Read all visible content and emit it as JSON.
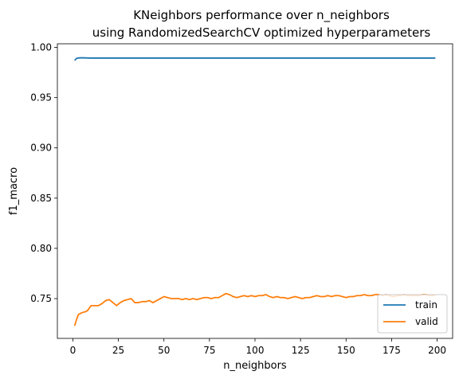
{
  "chart_data": {
    "type": "line",
    "title_line1": "KNeighbors performance over n_neighbors",
    "title_line2": "using RandomizedSearchCV optimized hyperparameters",
    "xlabel": "n_neighbors",
    "ylabel": "f1_macro",
    "xlim": [
      -8.5,
      208.5
    ],
    "ylim": [
      0.7104,
      1.0036
    ],
    "xticks": [
      0,
      25,
      50,
      75,
      100,
      125,
      150,
      175,
      200
    ],
    "xtick_labels": [
      "0",
      "25",
      "50",
      "75",
      "100",
      "125",
      "150",
      "175",
      "200"
    ],
    "yticks": [
      0.75,
      0.8,
      0.85,
      0.9,
      0.95,
      1.0
    ],
    "ytick_labels": [
      "0.75",
      "0.80",
      "0.85",
      "0.90",
      "0.95",
      "1.00"
    ],
    "legend_position": "bottom-right",
    "series": [
      {
        "name": "train",
        "color": "#1f77b4",
        "points": [
          [
            1,
            0.987
          ],
          [
            2,
            0.989
          ],
          [
            3,
            0.9895
          ],
          [
            5,
            0.9897
          ],
          [
            8,
            0.9895
          ],
          [
            10,
            0.9894
          ],
          [
            20,
            0.9894
          ],
          [
            50,
            0.9894
          ],
          [
            100,
            0.9894
          ],
          [
            150,
            0.9894
          ],
          [
            199,
            0.9894
          ]
        ]
      },
      {
        "name": "valid",
        "color": "#ff7f0e",
        "points": [
          [
            1,
            0.723
          ],
          [
            2,
            0.729
          ],
          [
            3,
            0.734
          ],
          [
            5,
            0.736
          ],
          [
            7,
            0.737
          ],
          [
            8,
            0.738
          ],
          [
            10,
            0.743
          ],
          [
            12,
            0.743
          ],
          [
            14,
            0.743
          ],
          [
            16,
            0.745
          ],
          [
            18,
            0.748
          ],
          [
            20,
            0.749
          ],
          [
            22,
            0.746
          ],
          [
            24,
            0.743
          ],
          [
            26,
            0.746
          ],
          [
            28,
            0.748
          ],
          [
            30,
            0.749
          ],
          [
            32,
            0.75
          ],
          [
            34,
            0.746
          ],
          [
            36,
            0.746
          ],
          [
            38,
            0.747
          ],
          [
            40,
            0.747
          ],
          [
            42,
            0.748
          ],
          [
            44,
            0.746
          ],
          [
            46,
            0.748
          ],
          [
            48,
            0.75
          ],
          [
            50,
            0.752
          ],
          [
            52,
            0.751
          ],
          [
            54,
            0.75
          ],
          [
            56,
            0.75
          ],
          [
            58,
            0.75
          ],
          [
            60,
            0.749
          ],
          [
            62,
            0.75
          ],
          [
            64,
            0.749
          ],
          [
            66,
            0.75
          ],
          [
            68,
            0.749
          ],
          [
            70,
            0.75
          ],
          [
            72,
            0.751
          ],
          [
            74,
            0.751
          ],
          [
            76,
            0.75
          ],
          [
            78,
            0.751
          ],
          [
            80,
            0.751
          ],
          [
            82,
            0.753
          ],
          [
            84,
            0.755
          ],
          [
            86,
            0.754
          ],
          [
            88,
            0.752
          ],
          [
            90,
            0.751
          ],
          [
            92,
            0.752
          ],
          [
            94,
            0.753
          ],
          [
            96,
            0.752
          ],
          [
            98,
            0.753
          ],
          [
            100,
            0.752
          ],
          [
            102,
            0.753
          ],
          [
            104,
            0.753
          ],
          [
            106,
            0.754
          ],
          [
            108,
            0.752
          ],
          [
            110,
            0.751
          ],
          [
            112,
            0.752
          ],
          [
            114,
            0.751
          ],
          [
            116,
            0.751
          ],
          [
            118,
            0.75
          ],
          [
            120,
            0.751
          ],
          [
            122,
            0.752
          ],
          [
            124,
            0.751
          ],
          [
            126,
            0.75
          ],
          [
            128,
            0.751
          ],
          [
            130,
            0.751
          ],
          [
            132,
            0.752
          ],
          [
            134,
            0.753
          ],
          [
            136,
            0.752
          ],
          [
            138,
            0.752
          ],
          [
            140,
            0.753
          ],
          [
            142,
            0.752
          ],
          [
            144,
            0.753
          ],
          [
            146,
            0.753
          ],
          [
            148,
            0.752
          ],
          [
            150,
            0.751
          ],
          [
            152,
            0.752
          ],
          [
            154,
            0.752
          ],
          [
            156,
            0.753
          ],
          [
            158,
            0.753
          ],
          [
            160,
            0.754
          ],
          [
            162,
            0.753
          ],
          [
            164,
            0.753
          ],
          [
            166,
            0.754
          ],
          [
            168,
            0.754
          ],
          [
            170,
            0.753
          ],
          [
            172,
            0.754
          ],
          [
            174,
            0.753
          ],
          [
            176,
            0.752
          ],
          [
            178,
            0.753
          ],
          [
            180,
            0.753
          ],
          [
            182,
            0.754
          ],
          [
            184,
            0.753
          ],
          [
            186,
            0.753
          ],
          [
            188,
            0.753
          ],
          [
            190,
            0.753
          ],
          [
            192,
            0.754
          ],
          [
            194,
            0.754
          ],
          [
            196,
            0.753
          ],
          [
            198,
            0.753
          ],
          [
            199,
            0.753
          ]
        ]
      }
    ]
  }
}
